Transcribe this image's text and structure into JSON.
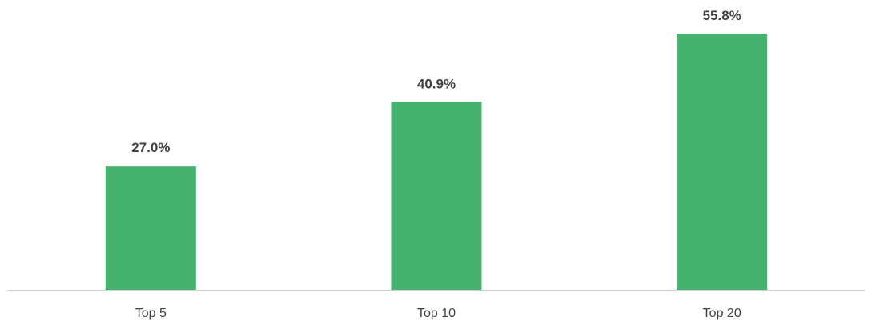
{
  "chart_data": {
    "type": "bar",
    "title": "",
    "xlabel": "",
    "ylabel": "",
    "categories": [
      "Top 5",
      "Top 10",
      "Top 20"
    ],
    "values": [
      27.0,
      40.9,
      55.8
    ],
    "data_labels": [
      "27.0%",
      "40.9%",
      "55.8%"
    ],
    "ylim": [
      0,
      60
    ],
    "grid": false,
    "legend": "none",
    "bar_color": "#46b26f",
    "axis_color": "#d0d0d0",
    "text_color": "#404040"
  }
}
